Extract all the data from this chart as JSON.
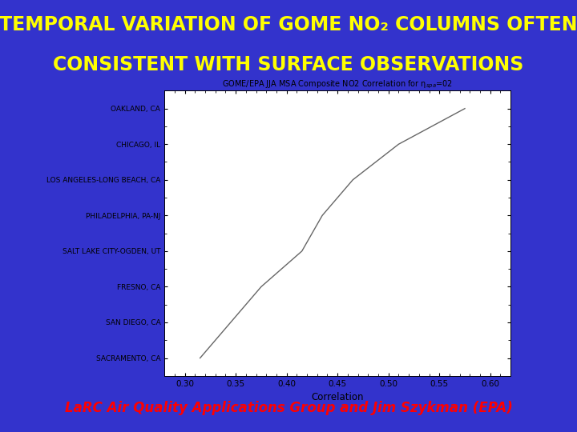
{
  "title_color": "#FFFF00",
  "bg_color": "#3333CC",
  "footer_text": "LaRC Air Quality Applications Group and Jim Szykman (EPA)",
  "footer_color": "#FF0000",
  "xlabel": "Correlation",
  "xlim": [
    0.28,
    0.62
  ],
  "xticks": [
    0.3,
    0.35,
    0.4,
    0.45,
    0.5,
    0.55,
    0.6
  ],
  "cities_bottom_to_top": [
    "SACRAMENTO, CA",
    "SAN DIEGO, CA",
    "FRESNO, CA",
    "SALT LAKE CITY-OGDEN, UT",
    "PHILADELPHIA, PA-NJ",
    "LOS ANGELES-LONG BEACH, CA",
    "CHICAGO, IL",
    "OAKLAND, CA"
  ],
  "correlation_values_bottom_to_top": [
    0.315,
    0.345,
    0.375,
    0.415,
    0.435,
    0.465,
    0.51,
    0.575
  ],
  "line_color": "#666666",
  "chart_title": "GOME/EPA JJA MSA Composite NO2 Correlation for ηspa=02"
}
